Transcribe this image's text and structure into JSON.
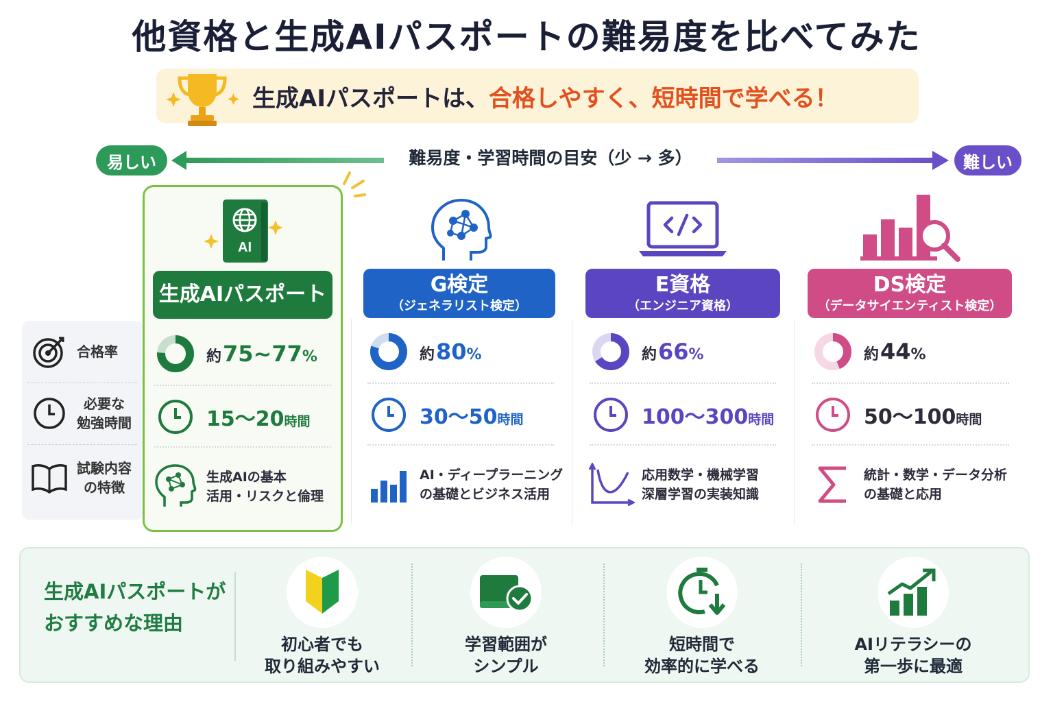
{
  "title": "他資格と生成AIパスポートの難易度を比べてみた",
  "banner": {
    "prefix": "生成AIパスポートは、",
    "highlight": "合格しやすく、短時間で学べる！"
  },
  "scale": {
    "easy": "易しい",
    "label": "難易度・学習時間の目安（少 → 多）",
    "hard": "難しい"
  },
  "row_labels": {
    "pass_rate": "合格率",
    "study_time_1": "必要な",
    "study_time_2": "勉強時間",
    "content_1": "試験内容",
    "content_2": "の特徴"
  },
  "qualifications": [
    {
      "name": "生成AIパスポート",
      "sub": "",
      "color": "#1f7a3e",
      "pass_prefix": "約",
      "pass_rate": "75~77",
      "pass_unit": "%",
      "pass_fraction": 0.76,
      "hours_value": "15～20",
      "hours_unit": "時間",
      "feature_1": "生成AIの基本",
      "feature_2": "活用・リスクと倫理",
      "icon": "passport-ai-icon"
    },
    {
      "name": "G検定",
      "sub": "（ジェネラリスト検定）",
      "color": "#1f63c6",
      "pass_prefix": "約",
      "pass_rate": "80",
      "pass_unit": "%",
      "pass_fraction": 0.8,
      "hours_value": "30～50",
      "hours_unit": "時間",
      "feature_1": "AI・ディープラーニング",
      "feature_2": "の基礎とビジネス活用",
      "icon": "brain-network-icon"
    },
    {
      "name": "E資格",
      "sub": "（エンジニア資格）",
      "color": "#5b45c0",
      "pass_prefix": "約",
      "pass_rate": "66",
      "pass_unit": "%",
      "pass_fraction": 0.66,
      "hours_value": "100～300",
      "hours_unit": "時間",
      "feature_1": "応用数学・機械学習",
      "feature_2": "深層学習の実装知識",
      "icon": "laptop-code-icon"
    },
    {
      "name": "DS検定",
      "sub": "（データサイエンティスト検定）",
      "color": "#d04c86",
      "pass_prefix": "約",
      "pass_rate": "44",
      "pass_unit": "%",
      "pass_fraction": 0.44,
      "hours_value": "50～100",
      "hours_unit": "時間",
      "feature_1": "統計・数学・データ分析",
      "feature_2": "の基礎と応用",
      "icon": "chart-magnifier-icon"
    }
  ],
  "reasons": {
    "title_1": "生成AIパスポートが",
    "title_2": "おすすめな理由",
    "items": [
      {
        "line1": "初心者でも",
        "line2": "取り組みやすい",
        "icon": "beginner-mark-icon"
      },
      {
        "line1": "学習範囲が",
        "line2": "シンプル",
        "icon": "book-check-icon"
      },
      {
        "line1": "短時間で",
        "line2": "効率的に学べる",
        "icon": "clock-down-icon"
      },
      {
        "line1": "AIリテラシーの",
        "line2": "第一歩に最適",
        "icon": "growth-chart-icon"
      }
    ]
  }
}
